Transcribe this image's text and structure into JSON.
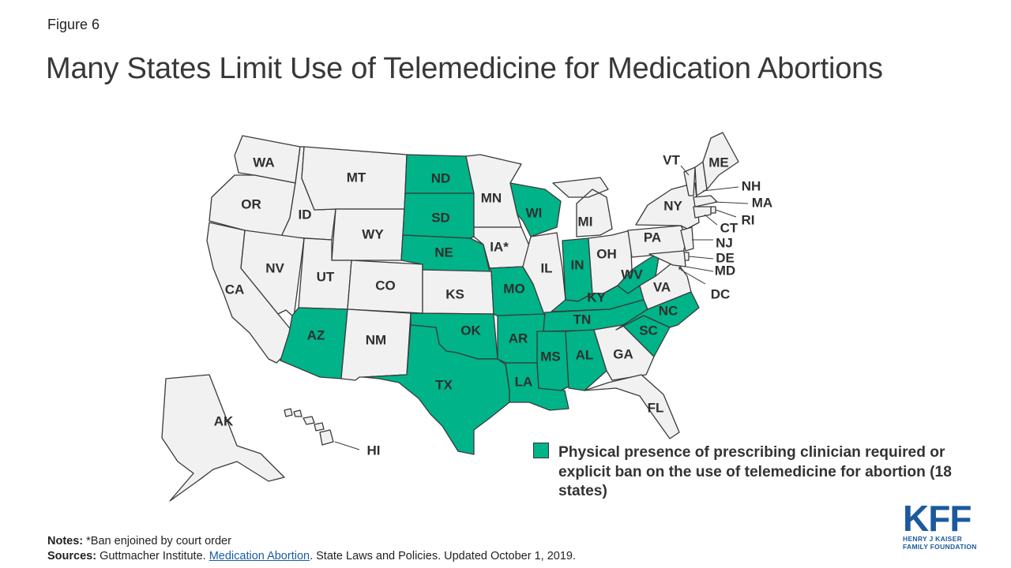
{
  "header": {
    "figure_label": "Figure 6",
    "title": "Many States Limit Use of Telemedicine for Medication Abortions"
  },
  "colors": {
    "highlight": "#00b388",
    "base": "#f1f1f2",
    "border": "#3a3a3a"
  },
  "map": {
    "highlighted_states": [
      "ND",
      "SD",
      "NE",
      "WI",
      "IN",
      "MO",
      "KY",
      "WV",
      "AZ",
      "OK",
      "TX",
      "AR",
      "LA",
      "MS",
      "AL",
      "TN",
      "SC",
      "NC"
    ],
    "state_labels": [
      "WA",
      "OR",
      "CA",
      "ID",
      "NV",
      "MT",
      "WY",
      "UT",
      "CO",
      "AZ",
      "NM",
      "ND",
      "SD",
      "NE",
      "KS",
      "OK",
      "TX",
      "MN",
      "IA*",
      "MO",
      "AR",
      "LA",
      "WI",
      "IL",
      "MI",
      "IN",
      "OH",
      "KY",
      "TN",
      "MS",
      "AL",
      "GA",
      "FL",
      "SC",
      "NC",
      "VA",
      "WV",
      "PA",
      "NY",
      "VT",
      "NH",
      "MA",
      "RI",
      "CT",
      "NJ",
      "DE",
      "MD",
      "DC",
      "ME",
      "AK",
      "HI"
    ]
  },
  "legend": {
    "text": "Physical presence of prescribing clinician required or explicit ban on the use of telemedicine for abortion (18 states)"
  },
  "notes": {
    "notes_label": "Notes:",
    "notes_text": " *Ban enjoined by court order",
    "sources_label": "Sources:",
    "sources_text_1": " Guttmacher Institute. ",
    "sources_link": "Medication Abortion",
    "sources_text_2": ". State Laws and Policies. Updated October 1, 2019."
  },
  "logo": {
    "name": "KFF",
    "line1": "HENRY J KAISER",
    "line2": "FAMILY FOUNDATION"
  }
}
